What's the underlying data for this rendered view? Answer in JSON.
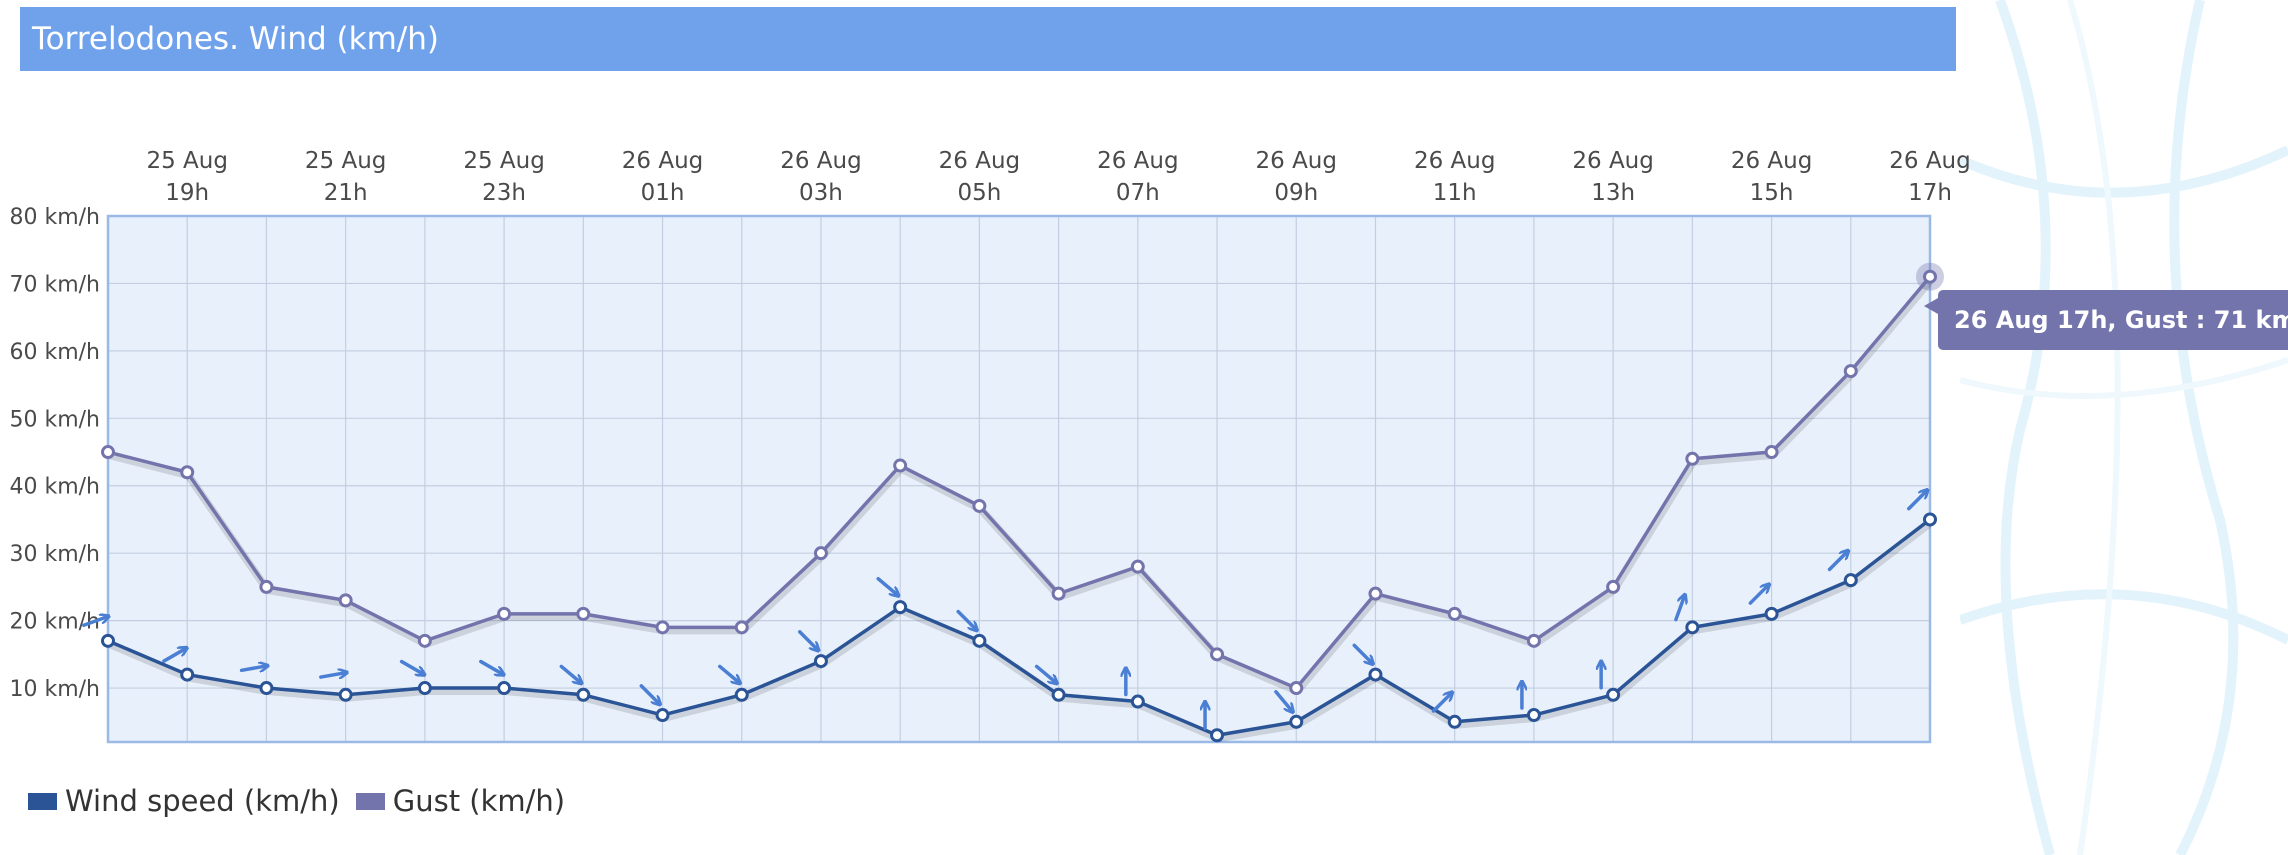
{
  "title": "Torrelodones. Wind (km/h)",
  "tooltip": {
    "text": "26 Aug 17h, Gust : 71 km/h"
  },
  "legend": [
    {
      "label": "Wind speed (km/h)",
      "color": "#2a5496"
    },
    {
      "label": "Gust (km/h)",
      "color": "#7474ad"
    }
  ],
  "chart_data": {
    "type": "line",
    "title": "Torrelodones. Wind (km/h)",
    "x": [
      "25 Aug 18h",
      "25 Aug 19h",
      "25 Aug 20h",
      "25 Aug 21h",
      "25 Aug 22h",
      "25 Aug 23h",
      "26 Aug 00h",
      "26 Aug 01h",
      "26 Aug 02h",
      "26 Aug 03h",
      "26 Aug 04h",
      "26 Aug 05h",
      "26 Aug 06h",
      "26 Aug 07h",
      "26 Aug 08h",
      "26 Aug 09h",
      "26 Aug 10h",
      "26 Aug 11h",
      "26 Aug 12h",
      "26 Aug 13h",
      "26 Aug 14h",
      "26 Aug 15h",
      "26 Aug 16h",
      "26 Aug 17h"
    ],
    "x_tick_labels": [
      {
        "index": 1,
        "line1": "25 Aug",
        "line2": "19h"
      },
      {
        "index": 3,
        "line1": "25 Aug",
        "line2": "21h"
      },
      {
        "index": 5,
        "line1": "25 Aug",
        "line2": "23h"
      },
      {
        "index": 7,
        "line1": "26 Aug",
        "line2": "01h"
      },
      {
        "index": 9,
        "line1": "26 Aug",
        "line2": "03h"
      },
      {
        "index": 11,
        "line1": "26 Aug",
        "line2": "05h"
      },
      {
        "index": 13,
        "line1": "26 Aug",
        "line2": "07h"
      },
      {
        "index": 15,
        "line1": "26 Aug",
        "line2": "09h"
      },
      {
        "index": 17,
        "line1": "26 Aug",
        "line2": "11h"
      },
      {
        "index": 19,
        "line1": "26 Aug",
        "line2": "13h"
      },
      {
        "index": 21,
        "line1": "26 Aug",
        "line2": "15h"
      },
      {
        "index": 23,
        "line1": "26 Aug",
        "line2": "17h"
      }
    ],
    "y_ticks": [
      {
        "value": 10,
        "label": "10 km/h"
      },
      {
        "value": 20,
        "label": "20 km/h"
      },
      {
        "value": 30,
        "label": "30 km/h"
      },
      {
        "value": 40,
        "label": "40 km/h"
      },
      {
        "value": 50,
        "label": "50 km/h"
      },
      {
        "value": 60,
        "label": "60 km/h"
      },
      {
        "value": 70,
        "label": "70 km/h"
      },
      {
        "value": 80,
        "label": "80 km/h"
      }
    ],
    "ylim": [
      2,
      80
    ],
    "grid": true,
    "legend_position": "bottom-left",
    "series": [
      {
        "name": "Wind speed (km/h)",
        "color": "#2a5496",
        "values": [
          17,
          12,
          10,
          9,
          10,
          10,
          9,
          6,
          9,
          14,
          22,
          17,
          9,
          8,
          3,
          5,
          12,
          5,
          6,
          9,
          19,
          21,
          26,
          35
        ],
        "direction_deg": [
          250,
          240,
          260,
          260,
          300,
          300,
          310,
          315,
          310,
          315,
          310,
          315,
          310,
          180,
          180,
          320,
          315,
          225,
          180,
          180,
          200,
          225,
          225,
          225
        ]
      },
      {
        "name": "Gust (km/h)",
        "color": "#7474ad",
        "values": [
          45,
          42,
          25,
          23,
          17,
          21,
          21,
          19,
          19,
          30,
          43,
          37,
          24,
          28,
          15,
          10,
          24,
          21,
          17,
          25,
          44,
          45,
          57,
          71
        ]
      }
    ],
    "highlight": {
      "series": 1,
      "index": 23
    }
  }
}
